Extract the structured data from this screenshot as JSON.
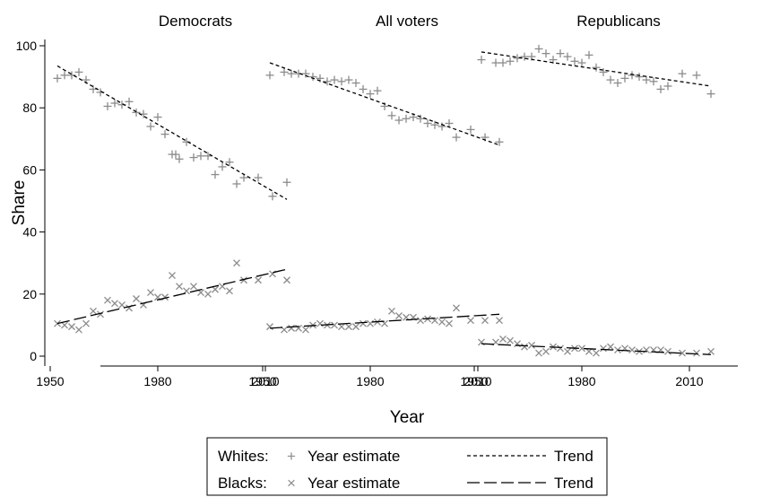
{
  "chart_data": [
    {
      "type": "scatter",
      "title": "Democrats",
      "xlim": [
        1950,
        2016
      ],
      "ylim": [
        0,
        100
      ],
      "series": [
        {
          "name": "Whites: Year estimate",
          "marker": "plus",
          "color": "#8c8c8c",
          "x": [
            1952,
            1954,
            1956,
            1958,
            1960,
            1962,
            1964,
            1966,
            1968,
            1970,
            1972,
            1974,
            1976,
            1978,
            1980,
            1982,
            1984,
            1985,
            1986,
            1988,
            1990,
            1992,
            1994,
            1996,
            1998,
            2000,
            2002,
            2004,
            2008,
            2012,
            2016
          ],
          "y": [
            89.5,
            90.5,
            90.5,
            91.5,
            89,
            86,
            85,
            80.5,
            81.5,
            81,
            82,
            78.5,
            78,
            74,
            77,
            71.5,
            65,
            65,
            63.5,
            69,
            64,
            64.5,
            64.5,
            58.5,
            61,
            62.5,
            55.5,
            57.5,
            57.5,
            51.5,
            56
          ]
        },
        {
          "name": "Blacks: Year estimate",
          "marker": "x",
          "color": "#8c8c8c",
          "x": [
            1952,
            1954,
            1956,
            1958,
            1960,
            1962,
            1964,
            1966,
            1968,
            1970,
            1972,
            1974,
            1976,
            1978,
            1980,
            1982,
            1984,
            1986,
            1988,
            1990,
            1992,
            1994,
            1996,
            1998,
            2000,
            2002,
            2004,
            2008,
            2012,
            2016
          ],
          "y": [
            10.5,
            10,
            9.5,
            8.5,
            10.5,
            14.5,
            13.5,
            18,
            17,
            16.5,
            15.5,
            18.5,
            16.5,
            20.5,
            19,
            19,
            26,
            22.5,
            21,
            22.5,
            20.5,
            20,
            21.5,
            22.5,
            21,
            30,
            24.5,
            24.5,
            26.5,
            24.5
          ]
        },
        {
          "name": "Whites: Trend",
          "line": "short-dash",
          "color": "#000000",
          "x": [
            1952,
            2016
          ],
          "y": [
            93.5,
            50.5
          ]
        },
        {
          "name": "Blacks: Trend",
          "line": "long-dash",
          "color": "#000000",
          "x": [
            1952,
            2016
          ],
          "y": [
            10.5,
            28
          ]
        }
      ]
    },
    {
      "type": "scatter",
      "title": "All voters",
      "xlim": [
        1950,
        2016
      ],
      "ylim": [
        0,
        100
      ],
      "series": [
        {
          "name": "Whites: Year estimate",
          "marker": "plus",
          "color": "#8c8c8c",
          "x": [
            1952,
            1956,
            1958,
            1960,
            1962,
            1964,
            1966,
            1968,
            1970,
            1972,
            1974,
            1976,
            1978,
            1980,
            1982,
            1984,
            1986,
            1988,
            1990,
            1992,
            1994,
            1996,
            1998,
            2000,
            2002,
            2004,
            2008,
            2012,
            2016
          ],
          "y": [
            90.5,
            91.5,
            91,
            91,
            91,
            90,
            89.5,
            88.5,
            89,
            88.5,
            89,
            88,
            86,
            84.5,
            85.5,
            80.5,
            77.5,
            76,
            76.5,
            77,
            76.5,
            75,
            74.5,
            74,
            75,
            70.5,
            73,
            70.5,
            69
          ]
        },
        {
          "name": "Blacks: Year estimate",
          "marker": "x",
          "color": "#8c8c8c",
          "x": [
            1952,
            1956,
            1958,
            1960,
            1962,
            1964,
            1966,
            1968,
            1970,
            1972,
            1974,
            1976,
            1978,
            1980,
            1982,
            1984,
            1986,
            1988,
            1990,
            1992,
            1994,
            1996,
            1998,
            2000,
            2002,
            2004,
            2008,
            2012,
            2016
          ],
          "y": [
            9.5,
            8.5,
            9,
            9,
            8.5,
            10,
            10.5,
            10,
            10,
            9.5,
            9.5,
            9.5,
            10.5,
            10.5,
            11,
            10.5,
            14.5,
            13,
            12.5,
            12.5,
            11.5,
            12,
            11.5,
            11,
            10.5,
            15.5,
            11.5,
            11.5,
            11.5
          ]
        },
        {
          "name": "Whites: Trend",
          "line": "short-dash",
          "color": "#000000",
          "x": [
            1952,
            2016
          ],
          "y": [
            94.5,
            68
          ]
        },
        {
          "name": "Blacks: Trend",
          "line": "long-dash",
          "color": "#000000",
          "x": [
            1952,
            2016
          ],
          "y": [
            9,
            13.5
          ]
        }
      ]
    },
    {
      "type": "scatter",
      "title": "Republicans",
      "xlim": [
        1950,
        2016
      ],
      "ylim": [
        0,
        100
      ],
      "series": [
        {
          "name": "Whites: Year estimate",
          "marker": "plus",
          "color": "#8c8c8c",
          "x": [
            1952,
            1956,
            1958,
            1960,
            1962,
            1964,
            1966,
            1968,
            1970,
            1972,
            1974,
            1976,
            1978,
            1980,
            1982,
            1984,
            1986,
            1988,
            1990,
            1992,
            1994,
            1996,
            1998,
            2000,
            2002,
            2004,
            2008,
            2012,
            2016
          ],
          "y": [
            95.5,
            94.5,
            94.5,
            95,
            96,
            96.5,
            96.5,
            99,
            97.5,
            95.5,
            97.5,
            96.5,
            95,
            94.5,
            97,
            93,
            91.5,
            89,
            88,
            89.5,
            90.5,
            90,
            89,
            88.5,
            86,
            87,
            91,
            90.5,
            84.5
          ]
        },
        {
          "name": "Blacks: Year estimate",
          "marker": "x",
          "color": "#8c8c8c",
          "x": [
            1952,
            1956,
            1958,
            1960,
            1962,
            1964,
            1966,
            1968,
            1970,
            1972,
            1974,
            1976,
            1978,
            1980,
            1982,
            1984,
            1986,
            1988,
            1990,
            1992,
            1994,
            1996,
            1998,
            2000,
            2002,
            2004,
            2008,
            2012,
            2016
          ],
          "y": [
            4.5,
            4.5,
            5.5,
            5,
            4,
            3,
            3.5,
            1,
            1.5,
            3,
            2.5,
            1.5,
            2.5,
            2.5,
            1.5,
            1,
            2.5,
            3,
            2,
            2.5,
            2,
            1.5,
            2,
            2,
            2,
            1.5,
            1,
            1,
            1.5
          ]
        },
        {
          "name": "Whites: Trend",
          "line": "short-dash",
          "color": "#000000",
          "x": [
            1952,
            2016
          ],
          "y": [
            98,
            87
          ]
        },
        {
          "name": "Blacks: Trend",
          "line": "long-dash",
          "color": "#000000",
          "x": [
            1952,
            2016
          ],
          "y": [
            4,
            0.5
          ]
        }
      ]
    }
  ],
  "axes": {
    "ylabel": "Share",
    "xlabel": "Year",
    "yticks": [
      0,
      20,
      40,
      60,
      80,
      100
    ],
    "xticks": [
      1950,
      1980,
      2010
    ]
  },
  "legend": {
    "placement": "bottom-center",
    "rows": [
      {
        "group": "Whites:",
        "marker_glyph": "+",
        "estimate_label": "Year estimate",
        "trend_label": "Trend"
      },
      {
        "group": "Blacks:",
        "marker_glyph": "×",
        "estimate_label": "Year estimate",
        "trend_label": "Trend"
      }
    ]
  }
}
